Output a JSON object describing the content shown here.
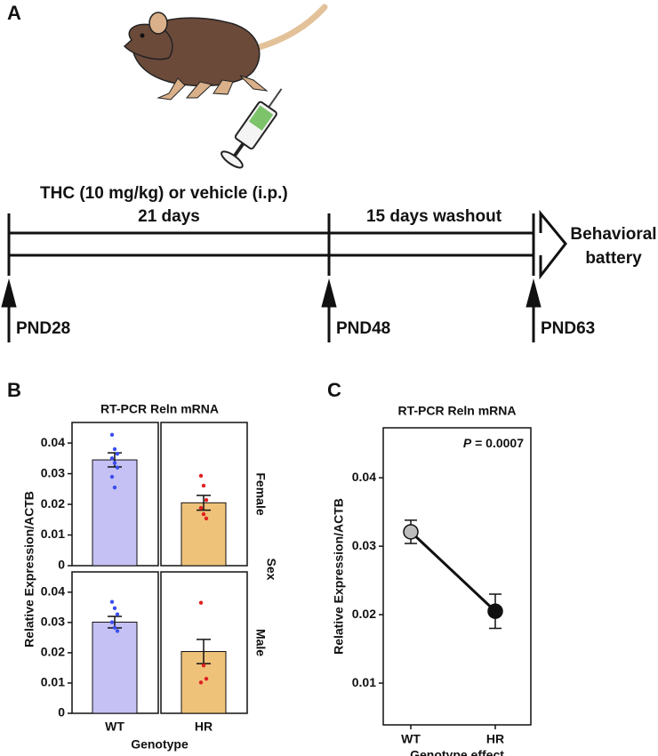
{
  "panel_labels": [
    "A",
    "B",
    "C"
  ],
  "timeline": {
    "treatment": "THC (10 mg/kg) or vehicle (i.p.)",
    "treatment_duration": "21 days",
    "washout": "15 days washout",
    "outcome": [
      "Behavioral",
      "battery"
    ],
    "timepoints": [
      "PND28",
      "PND48",
      "PND63"
    ]
  },
  "chart_data": [
    {
      "type": "bar",
      "title": "RT-PCR Reln mRNA",
      "y_label": "Relative Expression/ACTB",
      "facet_label": "Sex",
      "facet": "Female",
      "values": [
        0.0345,
        0.0205
      ],
      "errors": [
        0.0023,
        0.0024
      ],
      "colors": [
        "#c5c1f4",
        "#efc27a"
      ],
      "point_colors": [
        "#3a4ef0",
        "#e02020"
      ],
      "points": [
        [
          0.0427,
          0.038,
          0.0365,
          0.035,
          0.0335,
          0.032,
          0.029,
          0.0255
        ],
        [
          0.0293,
          0.0261,
          0.0214,
          0.0188,
          0.0168,
          0.0154
        ]
      ],
      "ylim": [
        0,
        0.0467
      ],
      "yticks": [
        0,
        0.01,
        0.02,
        0.03,
        0.04
      ]
    },
    {
      "type": "bar",
      "facet": "Male",
      "x_label": "Genotype",
      "categories": [
        "WT",
        "HR"
      ],
      "values": [
        0.0301,
        0.0204
      ],
      "errors": [
        0.0019,
        0.004
      ],
      "colors": [
        "#c5c1f4",
        "#efc27a"
      ],
      "point_colors": [
        "#3a4ef0",
        "#e02020"
      ],
      "points": [
        [
          0.0368,
          0.0347,
          0.0327,
          0.0301,
          0.0283,
          0.0272
        ],
        [
          0.0365,
          0.0158,
          0.0114,
          0.0102
        ]
      ],
      "ylim": [
        0,
        0.0467
      ],
      "yticks": [
        0,
        0.01,
        0.02,
        0.03,
        0.04
      ]
    },
    {
      "type": "line",
      "title": "RT-PCR Reln mRNA",
      "y_label": "Relative Expression/ACTB",
      "x_label": "Genotype effect",
      "annotation": "P = 0.0007",
      "categories": [
        "WT",
        "HR"
      ],
      "values": [
        0.0321,
        0.0205
      ],
      "errors": [
        0.0017,
        0.0025
      ],
      "colors": [
        "#bdbdbd",
        "#111111"
      ],
      "ylim": [
        0.0039,
        0.0473
      ],
      "yticks": [
        0.01,
        0.02,
        0.03,
        0.04
      ]
    }
  ]
}
